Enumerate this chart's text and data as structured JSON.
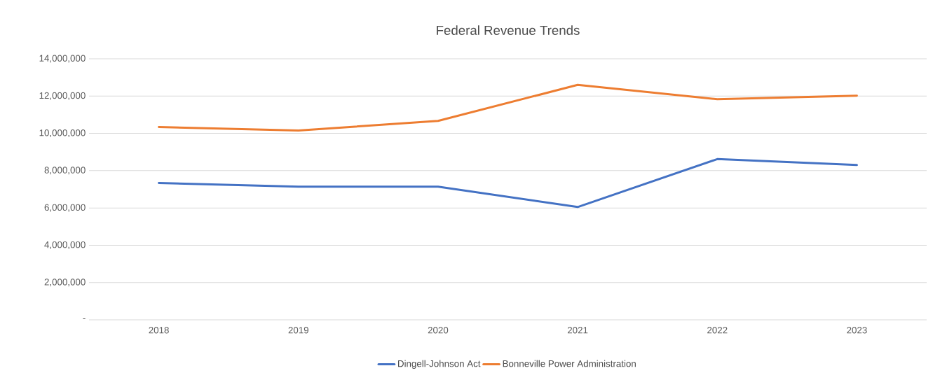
{
  "chart_data": {
    "type": "line",
    "title": "Federal Revenue Trends",
    "categories": [
      "2018",
      "2019",
      "2020",
      "2021",
      "2022",
      "2023"
    ],
    "series": [
      {
        "name": "Dingell-Johnson Act",
        "color": "#4472c4",
        "values": [
          7340000,
          7140000,
          7140000,
          6050000,
          8620000,
          8300000
        ]
      },
      {
        "name": "Bonneville Power Administration",
        "color": "#ed7d31",
        "values": [
          10340000,
          10150000,
          10670000,
          12600000,
          11830000,
          12020000
        ]
      }
    ],
    "ylim": [
      0,
      14000000
    ],
    "yticks": [
      {
        "value": 0,
        "label": "-"
      },
      {
        "value": 2000000,
        "label": "2,000,000"
      },
      {
        "value": 4000000,
        "label": "4,000,000"
      },
      {
        "value": 6000000,
        "label": "6,000,000"
      },
      {
        "value": 8000000,
        "label": "8,000,000"
      },
      {
        "value": 10000000,
        "label": "10,000,000"
      },
      {
        "value": 12000000,
        "label": "12,000,000"
      },
      {
        "value": 14000000,
        "label": "14,000,000"
      }
    ],
    "grid": "y",
    "legend": "bottom"
  }
}
